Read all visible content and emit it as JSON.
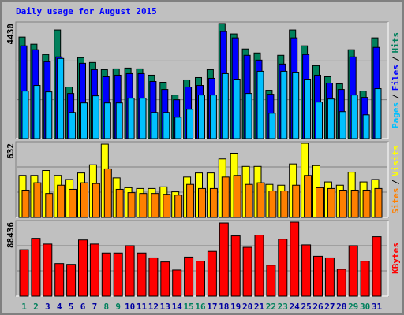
{
  "chart_data": [
    {
      "type": "bar",
      "title": "Daily usage for August 2015",
      "ylim": [
        0,
        4430
      ],
      "yticks": [
        4430
      ],
      "legend_separator": "/",
      "series": [
        {
          "name": "Hits",
          "color": "#00805c",
          "values": [
            3910,
            3636,
            3238,
            4185,
            1986,
            3116,
            2933,
            2658,
            2688,
            2719,
            2688,
            2444,
            2169,
            1680,
            2261,
            2352,
            2658,
            4430,
            4033,
            3452,
            3299,
            1864,
            3208,
            4185,
            3574,
            2811,
            2383,
            2108,
            3422,
            1833,
            3880
          ]
        },
        {
          "name": "Files",
          "color": "#0000ff",
          "values": [
            3574,
            3422,
            2963,
            3147,
            1741,
            2902,
            2658,
            2383,
            2444,
            2505,
            2505,
            2200,
            1894,
            1497,
            1986,
            2047,
            2322,
            4124,
            3880,
            3208,
            3024,
            1711,
            2872,
            3880,
            3238,
            2444,
            2138,
            1894,
            3147,
            1589,
            3513
          ]
        },
        {
          "name": "Pages",
          "color": "#00c0ff",
          "values": [
            1833,
            2047,
            1802,
            3086,
            1008,
            1375,
            1650,
            1375,
            1375,
            1558,
            1558,
            1008,
            1008,
            825,
            1130,
            1680,
            1680,
            2505,
            2291,
            1741,
            2597,
            978,
            2597,
            2536,
            2291,
            1405,
            1527,
            1039,
            1680,
            916,
            1925
          ]
        }
      ]
    },
    {
      "type": "bar",
      "ylim": [
        0,
        632
      ],
      "yticks": [
        632
      ],
      "legend_separator": "/",
      "series": [
        {
          "name": "Visits",
          "color": "#ffff00",
          "values": [
            358,
            358,
            400,
            358,
            323,
            379,
            449,
            625,
            337,
            253,
            246,
            246,
            260,
            218,
            344,
            379,
            379,
            499,
            548,
            435,
            435,
            281,
            274,
            456,
            632,
            442,
            302,
            274,
            386,
            302,
            323
          ]
        },
        {
          "name": "Sites",
          "color": "#ff8000",
          "values": [
            232,
            295,
            204,
            274,
            239,
            295,
            288,
            414,
            239,
            211,
            204,
            204,
            197,
            190,
            281,
            246,
            246,
            344,
            358,
            281,
            295,
            225,
            225,
            274,
            358,
            253,
            246,
            232,
            232,
            232,
            246
          ]
        }
      ]
    },
    {
      "type": "bar",
      "ylim": [
        0,
        88436
      ],
      "yticks": [
        88436
      ],
      "legend_separator": "/",
      "categories": [
        "1",
        "2",
        "3",
        "4",
        "5",
        "6",
        "7",
        "8",
        "9",
        "10",
        "11",
        "12",
        "13",
        "14",
        "15",
        "16",
        "17",
        "18",
        "19",
        "20",
        "21",
        "22",
        "23",
        "24",
        "25",
        "26",
        "27",
        "28",
        "29",
        "30",
        "31"
      ],
      "label_colors": [
        "#00805c",
        "#00805c",
        "#0000a0",
        "#0000a0",
        "#0000a0",
        "#0000a0",
        "#0000a0",
        "#00805c",
        "#00805c",
        "#0000a0",
        "#0000a0",
        "#0000a0",
        "#0000a0",
        "#0000a0",
        "#00805c",
        "#00805c",
        "#0000a0",
        "#0000a0",
        "#0000a0",
        "#0000a0",
        "#0000a0",
        "#00805c",
        "#00805c",
        "#0000a0",
        "#0000a0",
        "#0000a0",
        "#0000a0",
        "#0000a0",
        "#00805c",
        "#00805c",
        "#0000a0"
      ],
      "series": [
        {
          "name": "KBytes",
          "color": "#ff0000",
          "values": [
            55394,
            68999,
            62198,
            38873,
            37901,
            67055,
            62198,
            51507,
            51507,
            60253,
            51507,
            45675,
            40816,
            31098,
            46648,
            41788,
            53451,
            87463,
            71915,
            58310,
            72887,
            36929,
            68028,
            88436,
            61226,
            47620,
            45675,
            32070,
            60253,
            41788,
            70944
          ]
        }
      ]
    }
  ]
}
